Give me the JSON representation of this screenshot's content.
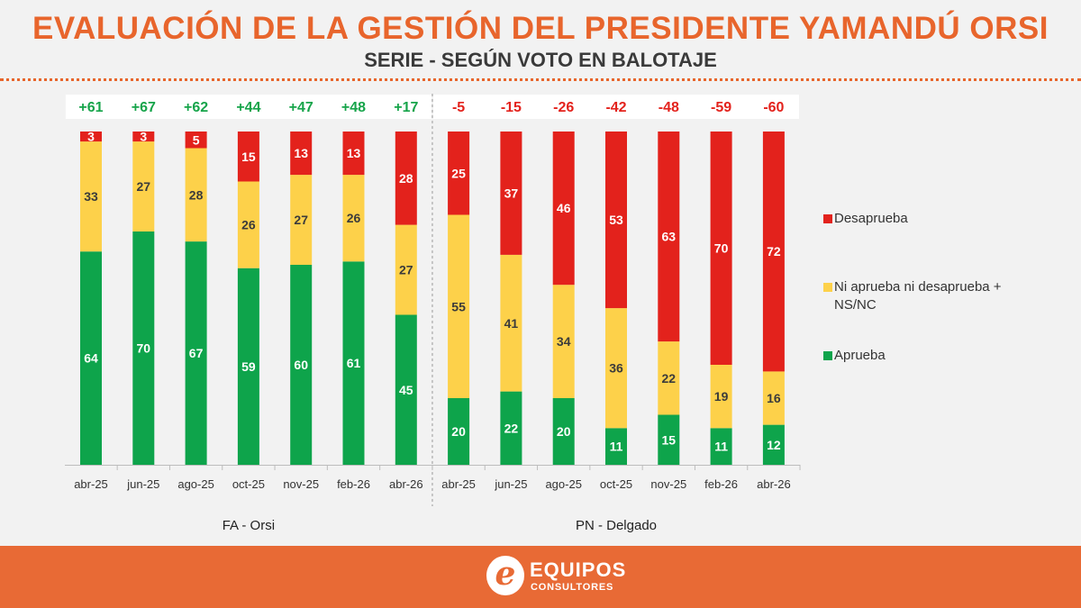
{
  "title": "EVALUACIÓN DE LA GESTIÓN DEL PRESIDENTE YAMANDÚ ORSI",
  "subtitle": "SERIE - SEGÚN VOTO EN BALOTAJE",
  "logo": {
    "name": "EQUIPOS",
    "sub": "CONSULTORES",
    "mark": "e"
  },
  "colors": {
    "desaprueba": "#e3221c",
    "ni": "#fdd14a",
    "aprueba": "#0ea44b",
    "positive": "#16a44a",
    "negative": "#e3221c",
    "accent": "#e8652c"
  },
  "chart_data": {
    "type": "bar",
    "stacked": true,
    "ylim": [
      0,
      100
    ],
    "legend_position": "right",
    "series": [
      {
        "key": "desaprueba",
        "name": "Desaprueba"
      },
      {
        "key": "ni",
        "name": "Ni aprueba ni desaprueba + NS/NC"
      },
      {
        "key": "aprueba",
        "name": "Aprueba"
      }
    ],
    "groups": [
      {
        "name": "FA - Orsi",
        "categories": [
          "abr-25",
          "jun-25",
          "ago-25",
          "oct-25",
          "nov-25",
          "feb-26",
          "abr-26"
        ],
        "aprueba": [
          64,
          70,
          67,
          59,
          60,
          61,
          45
        ],
        "ni": [
          33,
          27,
          28,
          26,
          27,
          26,
          27
        ],
        "desaprueba": [
          3,
          3,
          5,
          15,
          13,
          13,
          28
        ],
        "net": [
          "+61",
          "+67",
          "+62",
          "+44",
          "+47",
          "+48",
          "+17"
        ]
      },
      {
        "name": "PN - Delgado",
        "categories": [
          "abr-25",
          "jun-25",
          "ago-25",
          "oct-25",
          "nov-25",
          "feb-26",
          "abr-26"
        ],
        "aprueba": [
          20,
          22,
          20,
          11,
          15,
          11,
          12
        ],
        "ni": [
          55,
          41,
          34,
          36,
          22,
          19,
          16
        ],
        "desaprueba": [
          25,
          37,
          46,
          53,
          63,
          70,
          72
        ],
        "net": [
          "-5",
          "-15",
          "-26",
          "-42",
          "-48",
          "-59",
          "-60"
        ]
      }
    ]
  }
}
